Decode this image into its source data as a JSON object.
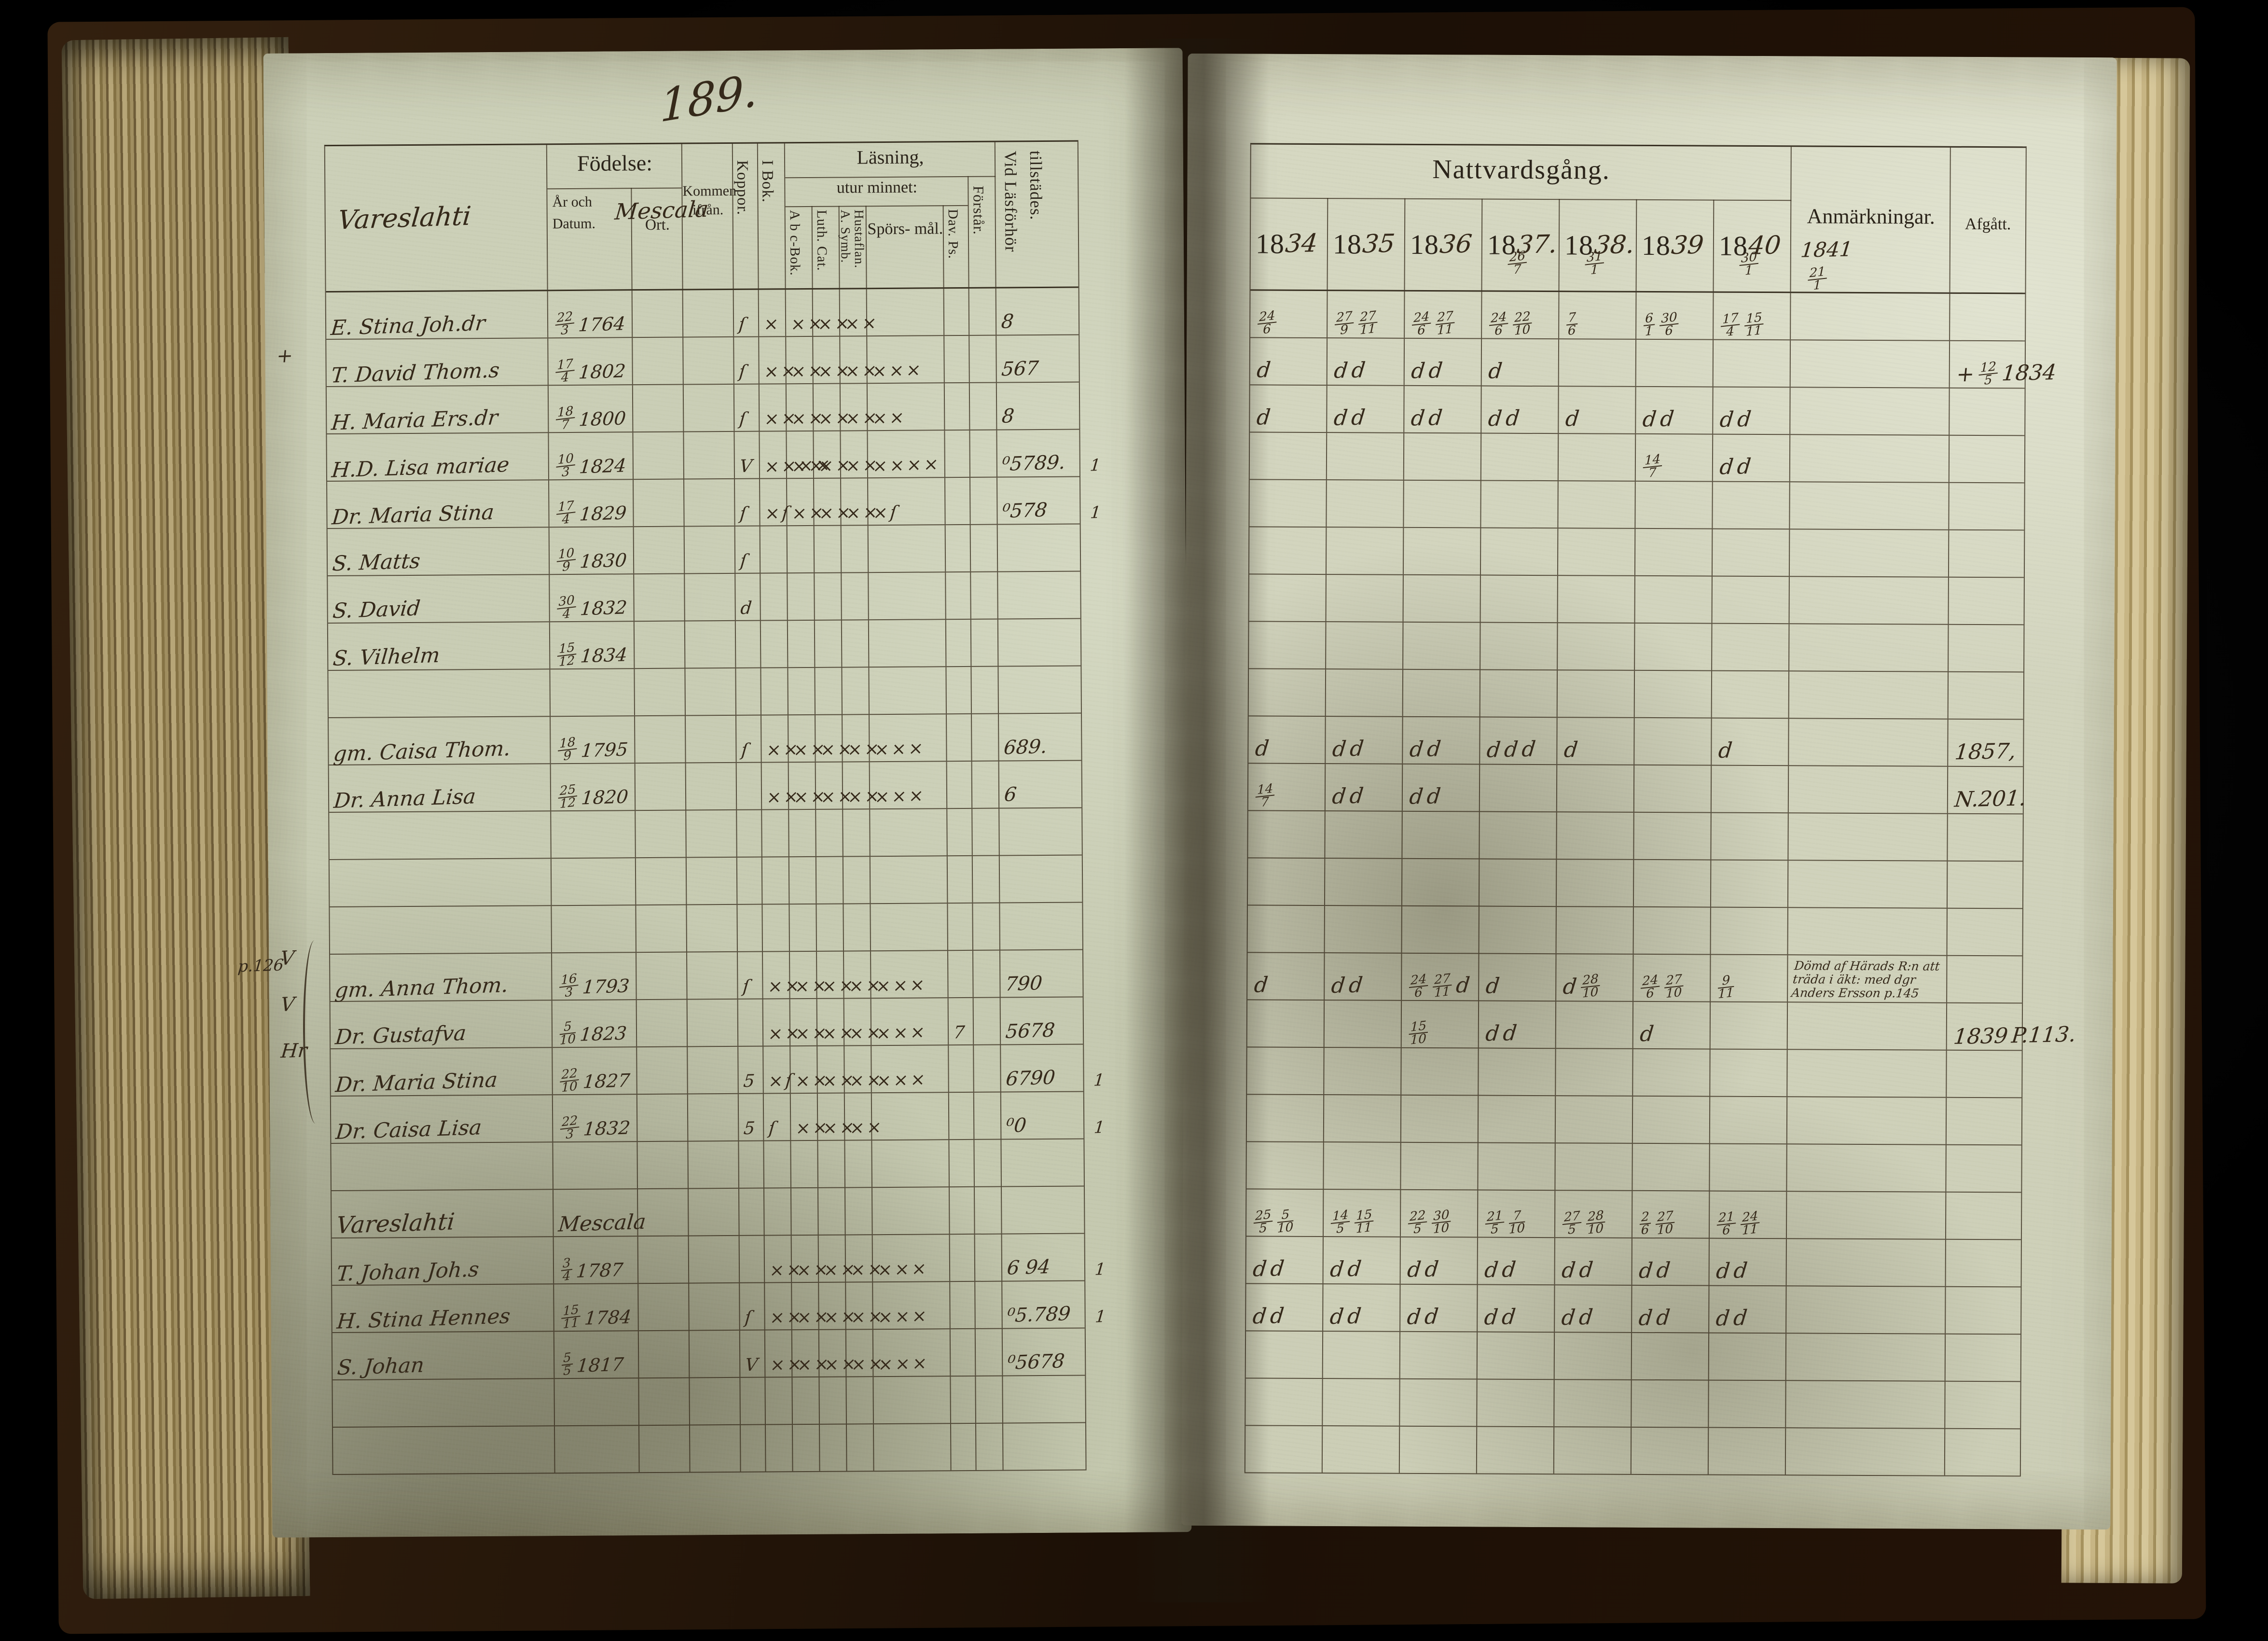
{
  "page_number": "189.",
  "left_table": {
    "village_hw": "Vareslahti",
    "parish_hw": "Mescala",
    "headers": {
      "fodelse": "Födelse:",
      "ar_och_datum": "År och Datum.",
      "ort": "Ort.",
      "kommen": "Kommen ifrån.",
      "koppor": "Koppor.",
      "ibok": "I Bok.",
      "lasning": "Läsning,",
      "utur_minnet": "utur minnet:",
      "abc_bok": "A b c-Bok.",
      "luth_cat": "Luth. Cat.",
      "hustaflan": "A. Symb. Hustaflan.",
      "sporsmal": "Spörs- mål.",
      "dav_ps": "Dav. Ps.",
      "forstar": "Förstår.",
      "tillstades": "Vid Läsförhör tillstädes."
    },
    "margin_note": "p.126",
    "margin": [
      {
        "row": 1,
        "text": "+"
      },
      {
        "row": 14,
        "text": "V"
      },
      {
        "row": 15,
        "text": "V"
      },
      {
        "row": 16,
        "text": "Hr"
      }
    ],
    "rows": [
      {
        "name": "E. Stina Joh.dr",
        "date": "22/3 1764",
        "marks": [
          "ſ",
          "×",
          "××",
          "××",
          "××",
          "",
          "",
          ""
        ],
        "tillst": "8",
        "extra": ""
      },
      {
        "name": "T. David Thom.s",
        "date": "17/4 1802",
        "marks": [
          "ſ",
          "××",
          "××",
          "××",
          "××",
          "×××",
          "",
          ""
        ],
        "tillst": "567",
        "extra": ""
      },
      {
        "name": "H. Maria Ers.dr",
        "date": "18/7 1800",
        "marks": [
          "ſ",
          "××",
          "××",
          "××",
          "××",
          "××",
          "",
          ""
        ],
        "tillst": "8",
        "extra": ""
      },
      {
        "name": "H.D. Lisa mariae",
        "date": "10/3 1824",
        "marks": [
          "V",
          "××××",
          "××",
          "××",
          "××",
          "××××",
          "",
          ""
        ],
        "tillst": "⁰5789.",
        "extra": "1"
      },
      {
        "name": "Dr. Maria Stina",
        "date": "17/4 1829",
        "marks": [
          "ſ",
          "×ſ",
          "××",
          "××",
          "××",
          "×ſ",
          "",
          ""
        ],
        "tillst": "⁰578",
        "extra": "1"
      },
      {
        "name": "S. Matts",
        "date": "10/9 1830",
        "marks": [
          "ſ",
          "",
          "",
          "",
          "",
          "",
          "",
          ""
        ],
        "tillst": "",
        "extra": ""
      },
      {
        "name": "S. David",
        "date": "30/4 1832",
        "marks": [
          "d",
          "",
          "",
          "",
          "",
          "",
          "",
          ""
        ],
        "tillst": "",
        "extra": ""
      },
      {
        "name": "S. Vilhelm",
        "date": "15/12 1834",
        "marks": [
          "",
          "",
          "",
          "",
          "",
          "",
          "",
          ""
        ],
        "tillst": "",
        "extra": ""
      },
      null,
      {
        "name": "gm. Caisa Thom.",
        "date": "18/9 1795",
        "marks": [
          "ſ",
          "××",
          "××",
          "××",
          "××",
          "×××",
          "",
          ""
        ],
        "tillst": "689.",
        "extra": ""
      },
      {
        "name": "Dr. Anna Lisa",
        "date": "25/12 1820",
        "marks": [
          "",
          "××",
          "××",
          "××",
          "××",
          "×××",
          "",
          ""
        ],
        "tillst": "6",
        "extra": ""
      },
      null,
      null,
      null,
      {
        "name": "gm. Anna Thom.",
        "date": "16/3 1793",
        "marks": [
          "ſ",
          "××",
          "××",
          "××",
          "××",
          "×××",
          "",
          ""
        ],
        "tillst": "790",
        "extra": ""
      },
      {
        "name": "Dr. Gustafva",
        "date": "5/10 1823",
        "marks": [
          "",
          "××",
          "××",
          "××",
          "××",
          "×××",
          "7",
          ""
        ],
        "tillst": "5678",
        "extra": ""
      },
      {
        "name": "Dr. Maria Stina",
        "date": "22/10 1827",
        "marks": [
          "5",
          "×ſ",
          "××",
          "××",
          "××",
          "×××",
          "",
          ""
        ],
        "tillst": "6790",
        "extra": "1"
      },
      {
        "name": "Dr. Caisa Lisa",
        "date": "22/3 1832",
        "marks": [
          "5",
          "ſ",
          "××",
          "××",
          "××",
          "",
          "",
          ""
        ],
        "tillst": "⁰0",
        "extra": "1"
      },
      null,
      {
        "section": true,
        "name": "Vareslahti",
        "ort": "Mescala"
      },
      {
        "name": "T. Johan Joh.s",
        "date": "3/4 1787",
        "marks": [
          "",
          "××",
          "××",
          "××",
          "××",
          "×××",
          "",
          ""
        ],
        "tillst": "6 94",
        "extra": "1"
      },
      {
        "name": "H. Stina Hennes",
        "date": "15/11 1784",
        "marks": [
          "ſ",
          "××",
          "××",
          "××",
          "××",
          "×××",
          "",
          ""
        ],
        "tillst": "⁰5.789",
        "extra": "1"
      },
      {
        "name": "S. Johan",
        "date": "5/5 1817",
        "marks": [
          "V",
          "××",
          "××",
          "××",
          "××",
          "×××",
          "",
          ""
        ],
        "tillst": "⁰5678",
        "extra": ""
      },
      null,
      null
    ]
  },
  "right_table": {
    "title": "Nattvardsgång.",
    "anm_label": "Anmärkningar.",
    "afgatt_label": "Afgått.",
    "years": [
      {
        "printed": "18",
        "hand": "34",
        "note": ""
      },
      {
        "printed": "18",
        "hand": "35",
        "note": ""
      },
      {
        "printed": "18",
        "hand": "36",
        "note": ""
      },
      {
        "printed": "18",
        "hand": "37.",
        "note": "26/7"
      },
      {
        "printed": "18",
        "hand": "38.",
        "note": "31/1"
      },
      {
        "printed": "18",
        "hand": "39",
        "note": ""
      },
      {
        "printed": "18",
        "hand": "40",
        "note": "30/1"
      }
    ],
    "extra_year": "1841",
    "extra_year_note": "21/1",
    "rows": [
      [
        "24/6",
        "27/9 27/11",
        "24/6 27/11",
        "24/6 22/10",
        "7/6",
        "6/1 30/6",
        "17/4 15/11",
        "",
        ""
      ],
      [
        "d",
        "d d",
        "d d",
        "d",
        "",
        "",
        "",
        "",
        "+ 12/5 1834"
      ],
      [
        "d",
        "d d",
        "d d",
        "d d",
        "d",
        "d d",
        "d d",
        "",
        ""
      ],
      [
        "",
        "",
        "",
        "",
        "",
        "14/7",
        "d d",
        "",
        ""
      ],
      [
        "",
        "",
        "",
        "",
        "",
        "",
        "",
        "",
        ""
      ],
      [
        "",
        "",
        "",
        "",
        "",
        "",
        "",
        "",
        ""
      ],
      [
        "",
        "",
        "",
        "",
        "",
        "",
        "",
        "",
        ""
      ],
      [
        "",
        "",
        "",
        "",
        "",
        "",
        "",
        "",
        ""
      ],
      [
        "",
        "",
        "",
        "",
        "",
        "",
        "",
        "",
        ""
      ],
      [
        "d",
        "d d",
        "d d",
        "d d d",
        "d",
        "",
        "d",
        "",
        "1857,"
      ],
      [
        "14/7",
        "d d",
        "d d",
        "",
        "",
        "",
        "",
        "",
        "N.201."
      ],
      [
        "",
        "",
        "",
        "",
        "",
        "",
        "",
        "",
        ""
      ],
      [
        "",
        "",
        "",
        "",
        "",
        "",
        "",
        "",
        ""
      ],
      [
        "",
        "",
        "",
        "",
        "",
        "",
        "",
        "",
        ""
      ],
      [
        "d",
        "d d",
        "24/6 27/11 d",
        "d",
        "d 28/10",
        "24/6 27/10",
        "9/11",
        "Dömd af Härads R:n att träda i äkt: med dgr Anders Ersson p.145",
        ""
      ],
      [
        "",
        "",
        "15/10",
        "d d",
        "",
        "d",
        "",
        "",
        "1839 P.113."
      ],
      [
        "",
        "",
        "",
        "",
        "",
        "",
        "",
        "",
        ""
      ],
      [
        "",
        "",
        "",
        "",
        "",
        "",
        "",
        "",
        ""
      ],
      [
        "",
        "",
        "",
        "",
        "",
        "",
        "",
        "",
        ""
      ],
      [
        "25/5 5/10",
        "14/5 15/11",
        "22/5 30/10",
        "21/5 7/10",
        "27/5 28/10",
        "2/6 27/10",
        "21/6 24/11",
        "",
        ""
      ],
      [
        "d d",
        "d d",
        "d d",
        "d d",
        "d d",
        "d d",
        "d d",
        "",
        ""
      ],
      [
        "d d",
        "d d",
        "d d",
        "d d",
        "d d",
        "d d",
        "d d",
        "",
        ""
      ],
      [
        "",
        "",
        "",
        "",
        "",
        "",
        "",
        "",
        ""
      ],
      [
        "",
        "",
        "",
        "",
        "",
        "",
        "",
        "",
        ""
      ],
      [
        "",
        "",
        "",
        "",
        "",
        "",
        "",
        "",
        ""
      ]
    ]
  }
}
